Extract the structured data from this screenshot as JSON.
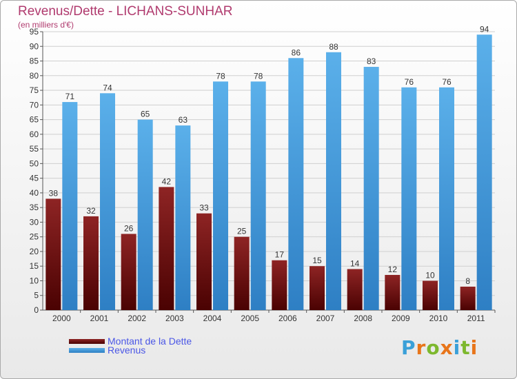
{
  "header": {
    "title": "Revenus/Dette - LICHANS-SUNHAR",
    "subtitle": "(en milliers d'€)"
  },
  "legend": {
    "items": [
      {
        "label": "Montant de la Dette",
        "color": "#6b0c0c"
      },
      {
        "label": "Revenus",
        "color": "#4a9de0"
      }
    ]
  },
  "logo": {
    "text": "Proxiti",
    "letter_colors": [
      "#3aa0d8",
      "#e8751a",
      "#7db82e",
      "#e8751a",
      "#3aa0d8",
      "#7db82e",
      "#e8751a"
    ]
  },
  "chart_data": {
    "type": "bar",
    "title": "Revenus/Dette - LICHANS-SUNHAR",
    "subtitle": "(en milliers d'€)",
    "categories": [
      "2000",
      "2001",
      "2002",
      "2003",
      "2004",
      "2005",
      "2006",
      "2007",
      "2008",
      "2009",
      "2010",
      "2011"
    ],
    "series": [
      {
        "name": "Montant de la Dette",
        "color": "#6b0c0c",
        "values": [
          38,
          32,
          26,
          42,
          33,
          25,
          17,
          15,
          14,
          12,
          10,
          8
        ]
      },
      {
        "name": "Revenus",
        "color": "#4a9de0",
        "values": [
          71,
          74,
          65,
          63,
          78,
          78,
          86,
          88,
          83,
          76,
          76,
          94
        ]
      }
    ],
    "ylim": [
      0,
      95
    ],
    "yticks": [
      0,
      5,
      10,
      15,
      20,
      25,
      30,
      35,
      40,
      45,
      50,
      55,
      60,
      65,
      70,
      75,
      80,
      85,
      90,
      95
    ],
    "grid": true,
    "legend_position": "bottom-left"
  }
}
